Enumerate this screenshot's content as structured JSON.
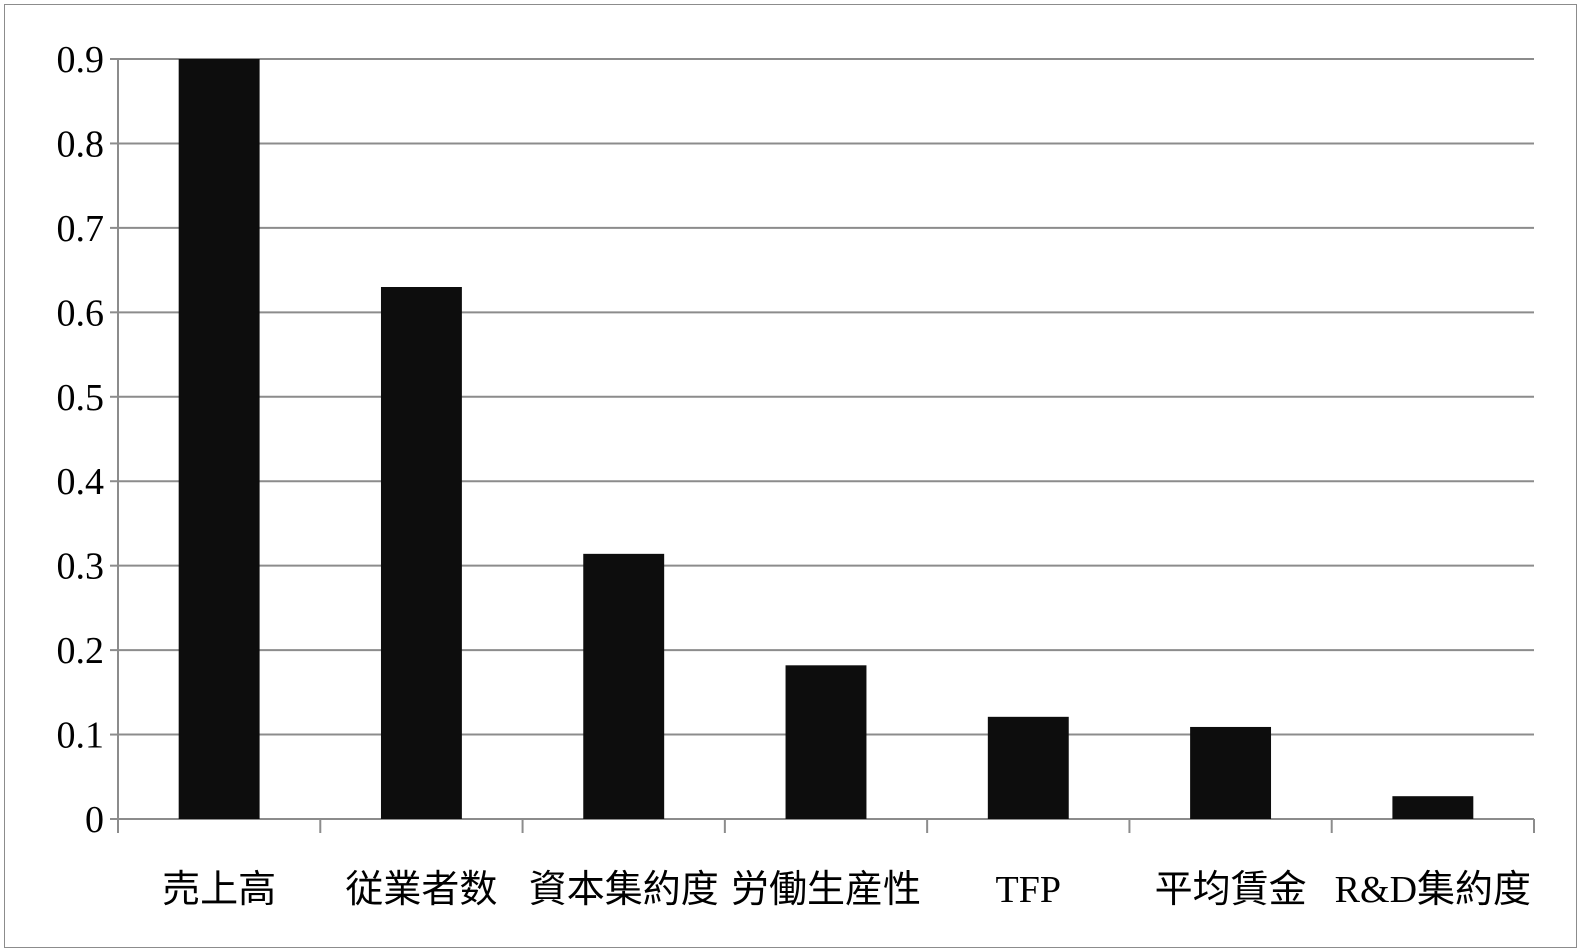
{
  "chart_data": {
    "type": "bar",
    "categories": [
      "売上高",
      "従業者数",
      "資本集約度",
      "労働生産性",
      "TFP",
      "平均賃金",
      "R&D集約度"
    ],
    "values": [
      0.9,
      0.63,
      0.314,
      0.182,
      0.121,
      0.109,
      0.027
    ],
    "ylim": [
      0,
      0.9
    ],
    "yticks": [
      "0",
      "0.1",
      "0.2",
      "0.3",
      "0.4",
      "0.5",
      "0.6",
      "0.7",
      "0.8",
      "0.9"
    ],
    "grid": true,
    "legend": "none",
    "colors": {
      "bar": "#0d0d0d",
      "grid": "#8c8c8c",
      "axis": "#8c8c8c"
    }
  }
}
